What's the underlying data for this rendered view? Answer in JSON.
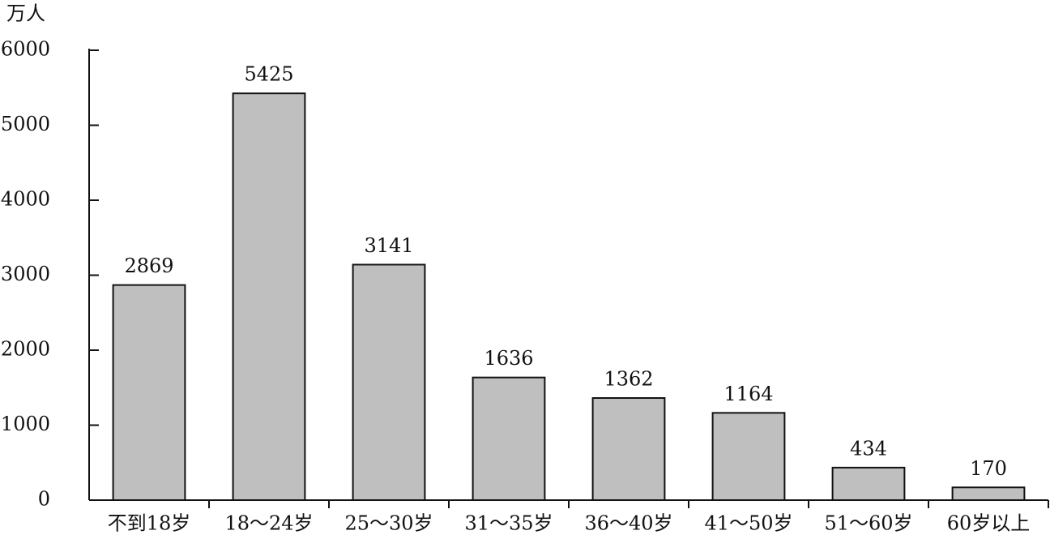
{
  "chart_data": {
    "type": "bar",
    "y_label": "万人",
    "categories": [
      "不到18岁",
      "18～24岁",
      "25～30岁",
      "31～35岁",
      "36～40岁",
      "41～50岁",
      "51～60岁",
      "60岁以上"
    ],
    "values": [
      2869,
      5425,
      3141,
      1636,
      1362,
      1164,
      434,
      170
    ],
    "color": "#c0bfc0",
    "ylim": [
      0,
      6000
    ],
    "yticks": [
      0,
      1000,
      2000,
      3000,
      4000,
      5000,
      6000
    ]
  }
}
